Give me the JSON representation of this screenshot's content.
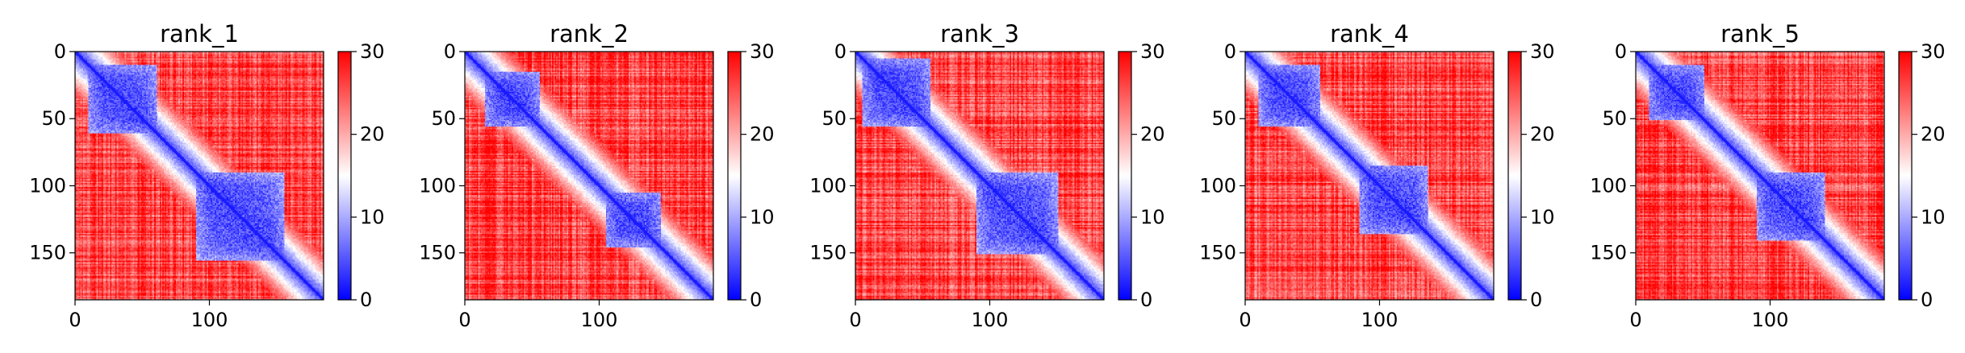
{
  "chart_data": [
    {
      "type": "heatmap",
      "title": "rank_1",
      "x_ticks": [
        "0",
        "100"
      ],
      "y_ticks": [
        "0",
        "50",
        "100",
        "150"
      ],
      "colorbar_ticks": [
        "0",
        "10",
        "20",
        "30"
      ],
      "clim": [
        0,
        30
      ],
      "size": 185,
      "colormap": "bwr",
      "domains": [
        [
          10,
          60
        ],
        [
          90,
          155
        ]
      ]
    },
    {
      "type": "heatmap",
      "title": "rank_2",
      "x_ticks": [
        "0",
        "100"
      ],
      "y_ticks": [
        "0",
        "50",
        "100",
        "150"
      ],
      "colorbar_ticks": [
        "0",
        "10",
        "20",
        "30"
      ],
      "clim": [
        0,
        30
      ],
      "size": 185,
      "colormap": "bwr",
      "domains": [
        [
          15,
          55
        ],
        [
          105,
          145
        ]
      ]
    },
    {
      "type": "heatmap",
      "title": "rank_3",
      "x_ticks": [
        "0",
        "100"
      ],
      "y_ticks": [
        "0",
        "50",
        "100",
        "150"
      ],
      "colorbar_ticks": [
        "0",
        "10",
        "20",
        "30"
      ],
      "clim": [
        0,
        30
      ],
      "size": 185,
      "colormap": "bwr",
      "domains": [
        [
          5,
          55
        ],
        [
          90,
          150
        ]
      ]
    },
    {
      "type": "heatmap",
      "title": "rank_4",
      "x_ticks": [
        "0",
        "100"
      ],
      "y_ticks": [
        "0",
        "50",
        "100",
        "150"
      ],
      "colorbar_ticks": [
        "0",
        "10",
        "20",
        "30"
      ],
      "clim": [
        0,
        30
      ],
      "size": 185,
      "colormap": "bwr",
      "domains": [
        [
          10,
          55
        ],
        [
          85,
          135
        ]
      ]
    },
    {
      "type": "heatmap",
      "title": "rank_5",
      "x_ticks": [
        "0",
        "100"
      ],
      "y_ticks": [
        "0",
        "50",
        "100",
        "150"
      ],
      "colorbar_ticks": [
        "0",
        "10",
        "20",
        "30"
      ],
      "clim": [
        0,
        30
      ],
      "size": 185,
      "colormap": "bwr",
      "domains": [
        [
          10,
          50
        ],
        [
          90,
          140
        ]
      ]
    }
  ]
}
